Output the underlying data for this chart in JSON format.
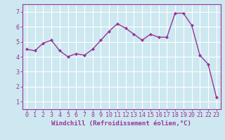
{
  "x": [
    0,
    1,
    2,
    3,
    4,
    5,
    6,
    7,
    8,
    9,
    10,
    11,
    12,
    13,
    14,
    15,
    16,
    17,
    18,
    19,
    20,
    21,
    22,
    23
  ],
  "y": [
    4.5,
    4.4,
    4.9,
    5.1,
    4.4,
    4.0,
    4.2,
    4.1,
    4.5,
    5.1,
    5.7,
    6.2,
    5.9,
    5.5,
    5.1,
    5.5,
    5.3,
    5.3,
    6.9,
    6.9,
    6.1,
    4.1,
    3.5,
    1.3
  ],
  "line_color": "#993399",
  "marker": "D",
  "marker_size": 2.0,
  "bg_color": "#cde8f0",
  "grid_color": "#ffffff",
  "xlabel": "Windchill (Refroidissement éolien,°C)",
  "xlim": [
    -0.5,
    23.5
  ],
  "ylim": [
    0.5,
    7.5
  ],
  "yticks": [
    1,
    2,
    3,
    4,
    5,
    6,
    7
  ],
  "xticks": [
    0,
    1,
    2,
    3,
    4,
    5,
    6,
    7,
    8,
    9,
    10,
    11,
    12,
    13,
    14,
    15,
    16,
    17,
    18,
    19,
    20,
    21,
    22,
    23
  ],
  "xlabel_fontsize": 6.5,
  "tick_fontsize": 6.0,
  "line_width": 1.0
}
